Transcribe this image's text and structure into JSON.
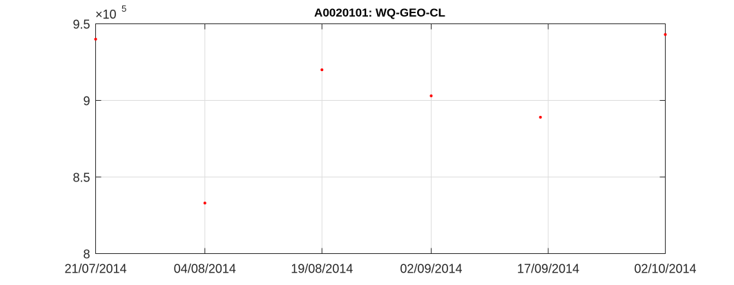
{
  "chart_data": {
    "type": "scatter",
    "title": "A0020101: WQ-GEO-CL",
    "xlabel": "",
    "ylabel": "",
    "y_multiplier_base": "×10",
    "y_multiplier_exponent": "5",
    "xlim": [
      "2014-07-21",
      "2014-10-02"
    ],
    "ylim": [
      8,
      9.5
    ],
    "x_ticks": [
      "21/07/2014",
      "04/08/2014",
      "19/08/2014",
      "02/09/2014",
      "17/09/2014",
      "02/10/2014"
    ],
    "y_ticks": [
      "8",
      "8.5",
      "9",
      "9.5"
    ],
    "grid": true,
    "marker_color": "#ff0000",
    "points": [
      {
        "x": "2014-07-21",
        "y": 9.4
      },
      {
        "x": "2014-08-04",
        "y": 8.33
      },
      {
        "x": "2014-08-19",
        "y": 9.2
      },
      {
        "x": "2014-09-02",
        "y": 9.03
      },
      {
        "x": "2014-09-16",
        "y": 8.89
      },
      {
        "x": "2014-10-02",
        "y": 9.43
      }
    ]
  }
}
